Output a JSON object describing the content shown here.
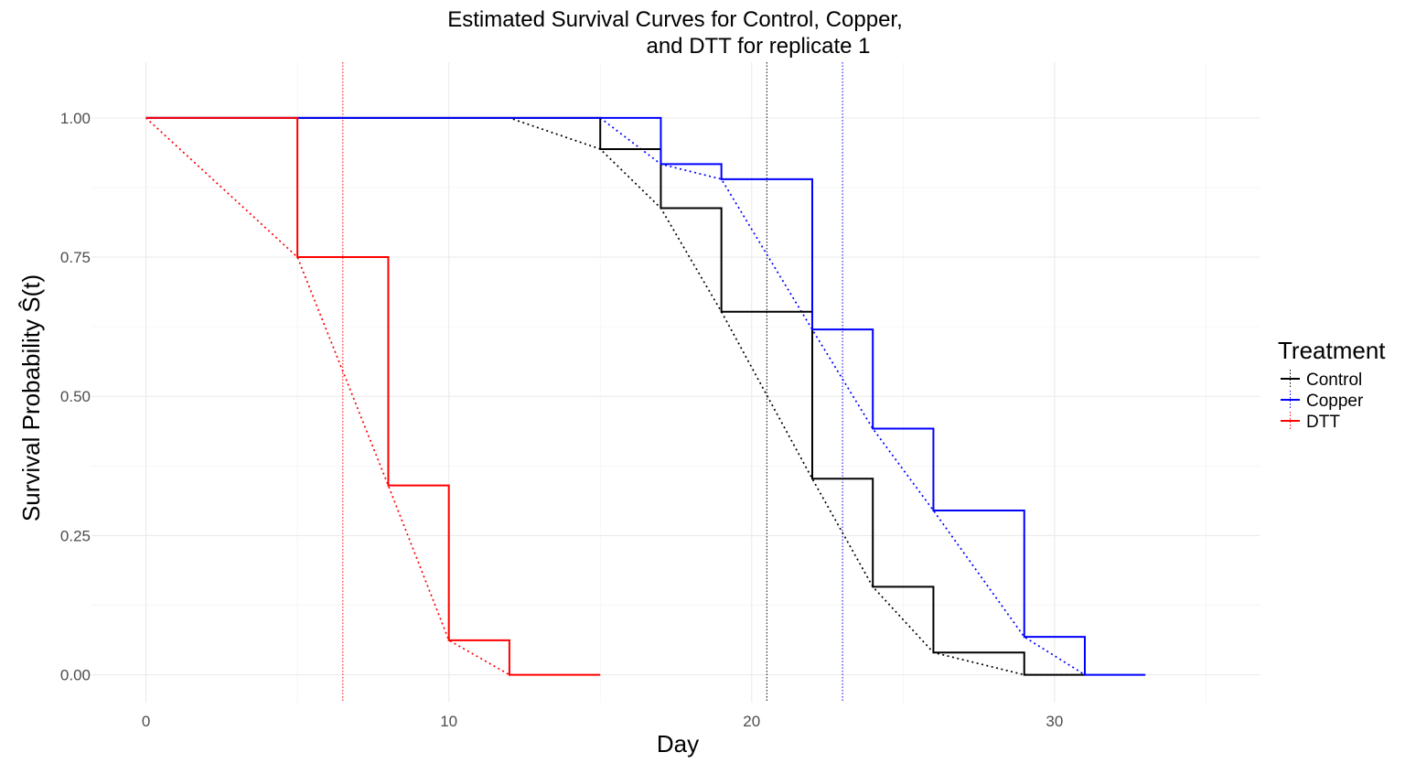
{
  "chart_data": {
    "type": "line",
    "title_line1": "Estimated Survival Curves for Control, Copper,",
    "title_line2": "and DTT for replicate 1",
    "xlabel": "Day",
    "ylabel": "Survival Probability Ŝ(t)",
    "xlim": [
      -1.8,
      36.8
    ],
    "ylim": [
      -0.05,
      1.1
    ],
    "x_ticks": [
      0,
      10,
      20,
      30
    ],
    "x_tick_labels": [
      "0",
      "10",
      "20",
      "30"
    ],
    "x_minor_ticks": [
      5,
      15,
      25,
      35
    ],
    "y_ticks": [
      0,
      0.25,
      0.5,
      0.75,
      1.0
    ],
    "y_tick_labels": [
      "0.00",
      "0.25",
      "0.50",
      "0.75",
      "1.00"
    ],
    "y_minor_ticks": [
      0.125,
      0.375,
      0.625,
      0.875
    ],
    "grid": true,
    "legend_title": "Treatment",
    "legend_position": "right",
    "series": [
      {
        "name": "Control",
        "color": "#000000",
        "step": {
          "x": [
            0,
            15,
            17,
            19,
            22,
            24,
            26,
            29,
            31
          ],
          "y": [
            1.0,
            0.944,
            0.838,
            0.652,
            0.352,
            0.158,
            0.04,
            0.0,
            0.0
          ]
        },
        "fitted": {
          "x": [
            0,
            12,
            15,
            17,
            19,
            22,
            24,
            26,
            29,
            31
          ],
          "y": [
            1.0,
            1.0,
            0.944,
            0.838,
            0.652,
            0.352,
            0.158,
            0.04,
            0.0,
            0.0
          ]
        },
        "median_line": 20.5
      },
      {
        "name": "Copper",
        "color": "#0000ff",
        "step": {
          "x": [
            0,
            17,
            19,
            22,
            24,
            26,
            29,
            31,
            33
          ],
          "y": [
            1.0,
            0.917,
            0.89,
            0.62,
            0.442,
            0.295,
            0.068,
            0.0,
            0.0
          ]
        },
        "fitted": {
          "x": [
            15,
            17,
            19,
            22,
            24,
            26,
            29,
            31
          ],
          "y": [
            1.0,
            0.917,
            0.89,
            0.62,
            0.442,
            0.295,
            0.068,
            0.0
          ]
        },
        "median_line": 23
      },
      {
        "name": "DTT",
        "color": "#ff0000",
        "step": {
          "x": [
            0,
            5,
            8,
            10,
            12,
            15
          ],
          "y": [
            1.0,
            0.75,
            0.34,
            0.062,
            0.0,
            0.0
          ]
        },
        "fitted": {
          "x": [
            0,
            5,
            8,
            10,
            12
          ],
          "y": [
            1.0,
            0.75,
            0.34,
            0.062,
            0.0
          ]
        },
        "median_line": 6.5
      }
    ]
  }
}
